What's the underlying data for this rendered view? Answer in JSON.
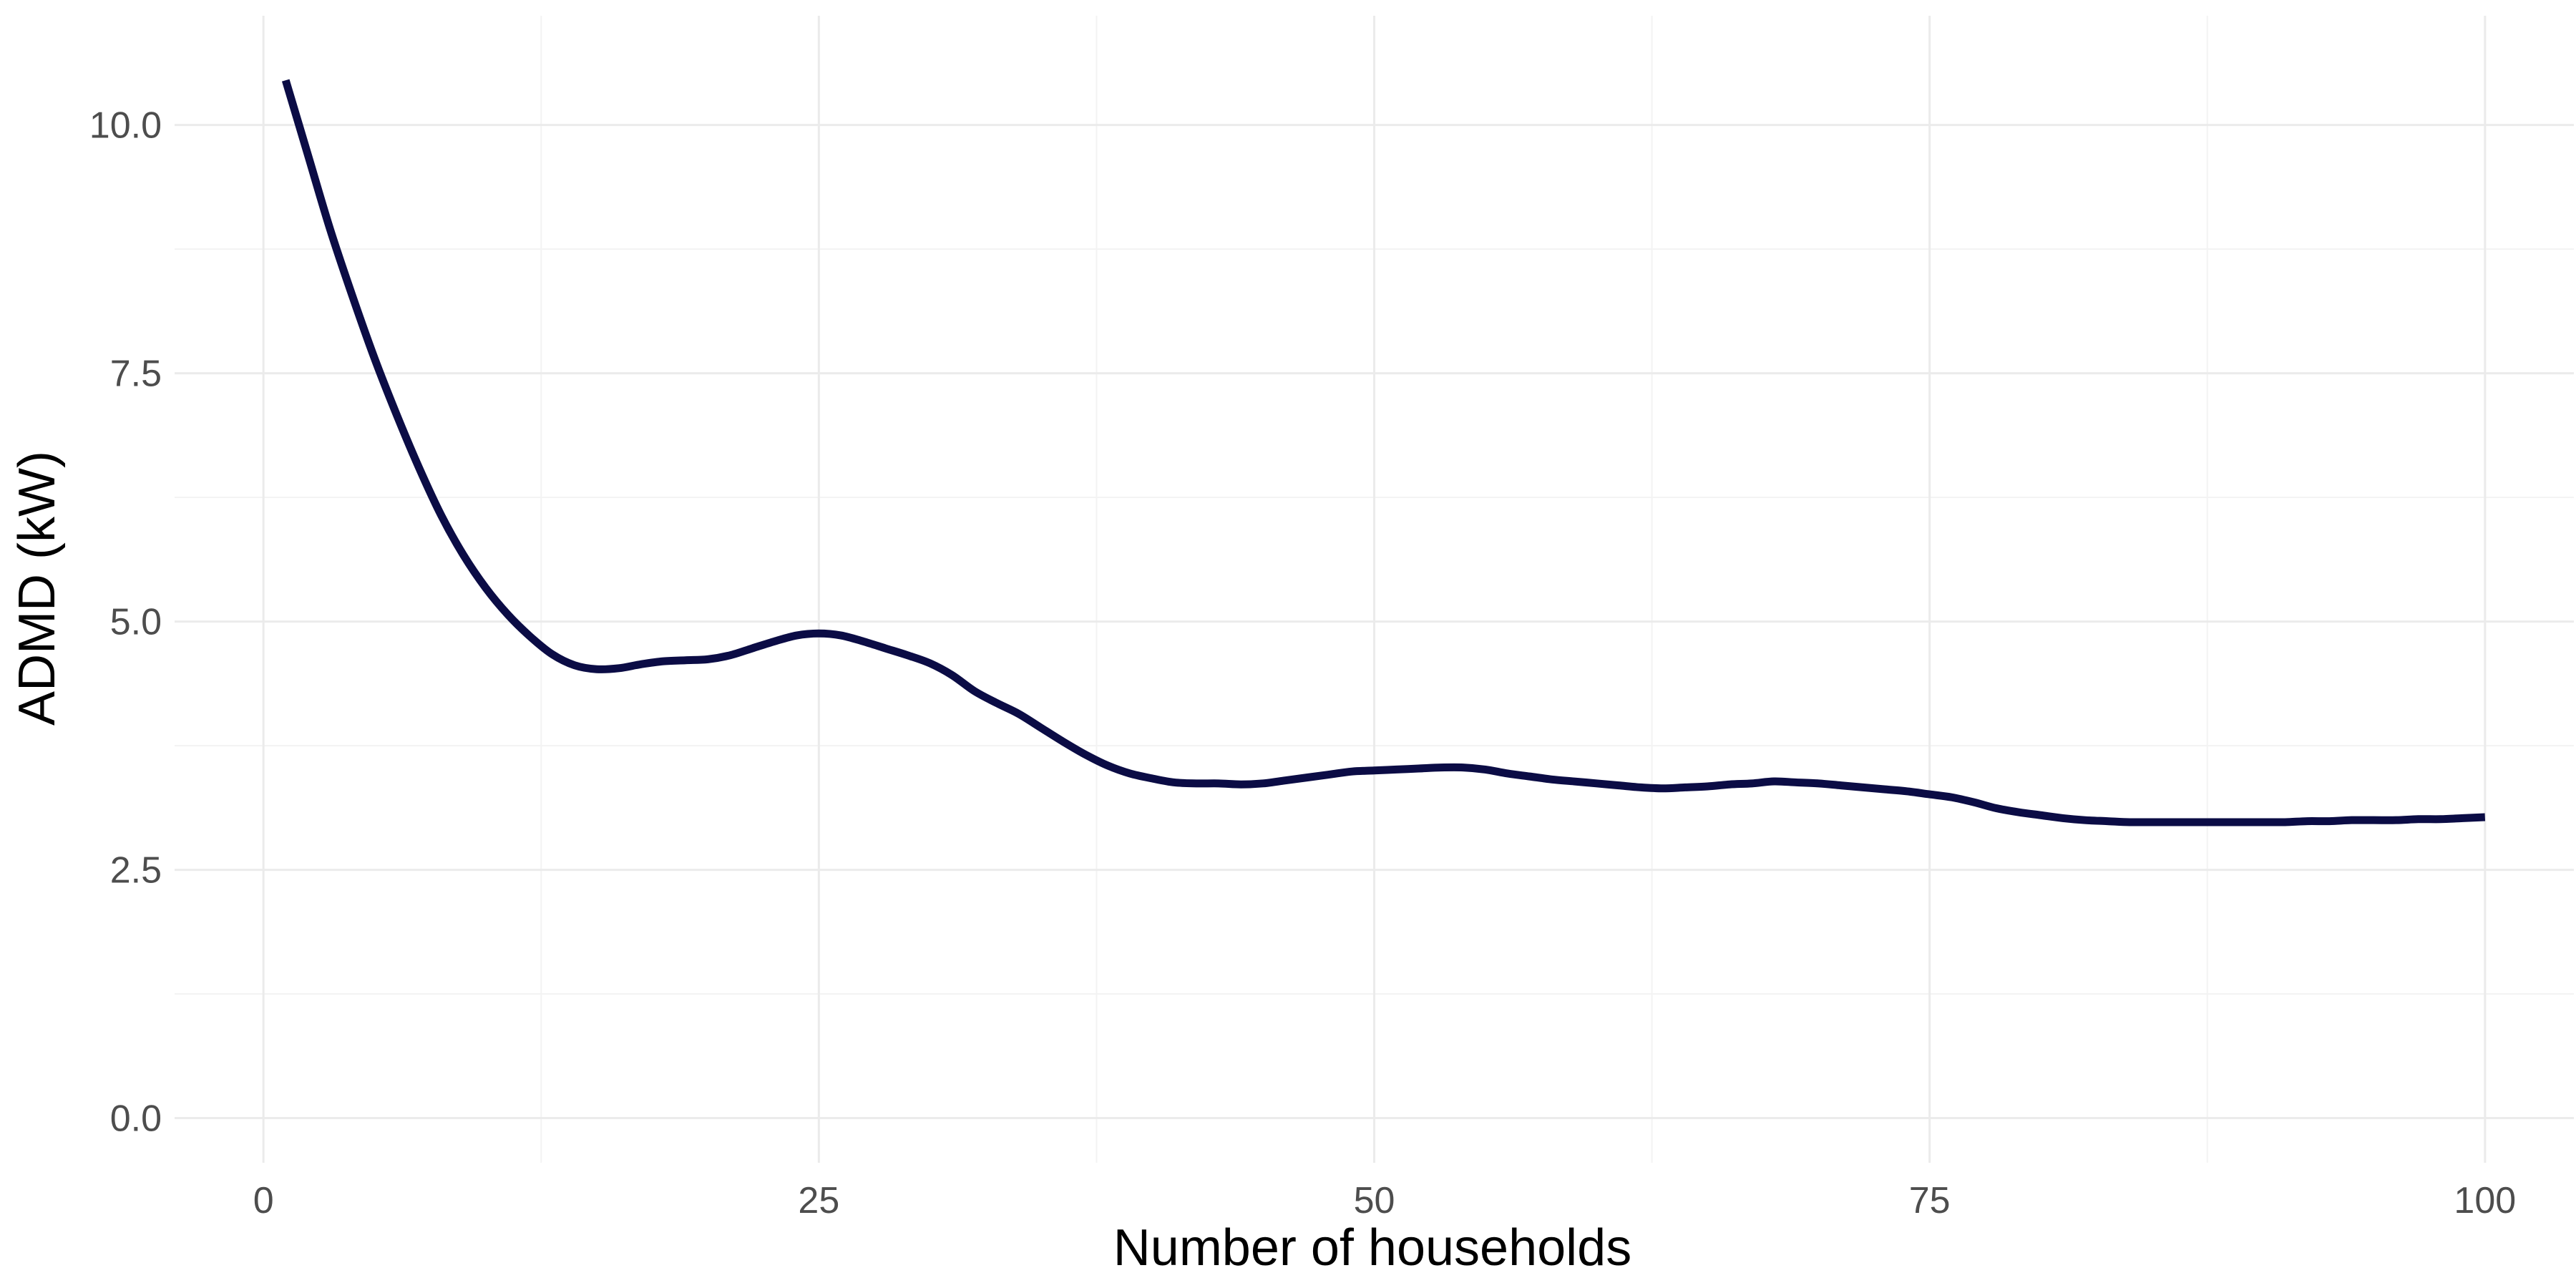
{
  "chart_data": {
    "type": "line",
    "title": "",
    "xlabel": "Number of households",
    "ylabel": "ADMD (kW)",
    "xlim": [
      -4,
      104
    ],
    "ylim": [
      -0.45,
      11.1
    ],
    "x_ticks": [
      0,
      25,
      50,
      75,
      100
    ],
    "x_tick_labels": [
      "0",
      "25",
      "50",
      "75",
      "100"
    ],
    "y_ticks": [
      0,
      2.5,
      5,
      7.5,
      10
    ],
    "y_tick_labels": [
      "0.0",
      "2.5",
      "5.0",
      "7.5",
      "10.0"
    ],
    "x_minor_ticks": [
      12.5,
      37.5,
      62.5,
      87.5
    ],
    "y_minor_ticks": [
      1.25,
      3.75,
      6.25,
      8.75
    ],
    "grid": true,
    "legend": "none",
    "series": [
      {
        "color": "#0b0c45",
        "x": [
          1,
          2,
          3,
          4,
          5,
          6,
          7,
          8,
          9,
          10,
          11,
          12,
          13,
          14,
          15,
          16,
          17,
          18,
          19,
          20,
          21,
          22,
          23,
          24,
          25,
          26,
          27,
          28,
          29,
          30,
          31,
          32,
          33,
          34,
          35,
          36,
          37,
          38,
          39,
          40,
          41,
          42,
          43,
          44,
          45,
          46,
          47,
          48,
          49,
          50,
          51,
          52,
          53,
          54,
          55,
          56,
          57,
          58,
          59,
          60,
          61,
          62,
          63,
          64,
          65,
          66,
          67,
          68,
          69,
          70,
          71,
          72,
          73,
          74,
          75,
          76,
          77,
          78,
          79,
          80,
          81,
          82,
          83,
          84,
          85,
          86,
          87,
          88,
          89,
          90,
          91,
          92,
          93,
          94,
          95,
          96,
          97,
          98,
          99,
          100
        ],
        "values": [
          10.45,
          9.7,
          8.95,
          8.28,
          7.65,
          7.08,
          6.55,
          6.07,
          5.67,
          5.34,
          5.07,
          4.85,
          4.67,
          4.56,
          4.52,
          4.53,
          4.57,
          4.6,
          4.61,
          4.62,
          4.66,
          4.73,
          4.8,
          4.86,
          4.88,
          4.86,
          4.8,
          4.73,
          4.66,
          4.58,
          4.46,
          4.3,
          4.18,
          4.07,
          3.93,
          3.79,
          3.66,
          3.55,
          3.47,
          3.42,
          3.38,
          3.37,
          3.37,
          3.36,
          3.37,
          3.4,
          3.43,
          3.46,
          3.49,
          3.5,
          3.51,
          3.52,
          3.53,
          3.53,
          3.51,
          3.47,
          3.44,
          3.41,
          3.39,
          3.37,
          3.35,
          3.33,
          3.32,
          3.33,
          3.34,
          3.36,
          3.37,
          3.39,
          3.38,
          3.37,
          3.35,
          3.33,
          3.31,
          3.29,
          3.26,
          3.23,
          3.18,
          3.12,
          3.08,
          3.05,
          3.02,
          3.0,
          2.99,
          2.98,
          2.98,
          2.98,
          2.98,
          2.98,
          2.98,
          2.98,
          2.98,
          2.99,
          2.99,
          3.0,
          3.0,
          3.0,
          3.01,
          3.01,
          3.02,
          3.03
        ]
      }
    ]
  }
}
